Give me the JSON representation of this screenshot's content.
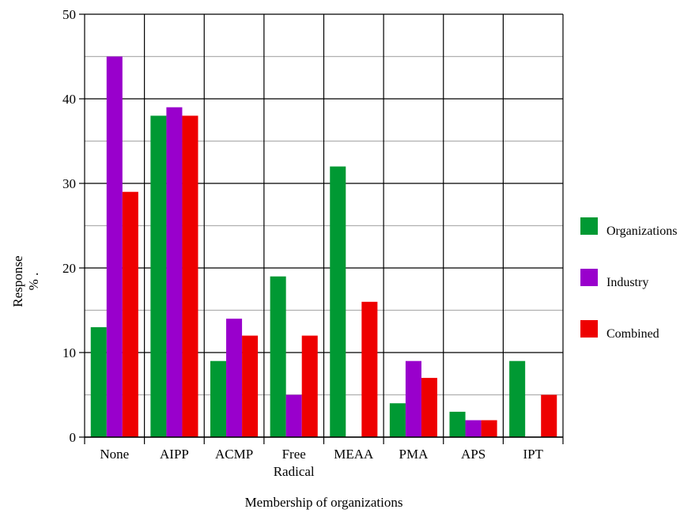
{
  "chart_data": {
    "type": "bar",
    "categories": [
      {
        "lines": [
          "None"
        ]
      },
      {
        "lines": [
          "AIPP"
        ]
      },
      {
        "lines": [
          "ACMP"
        ]
      },
      {
        "lines": [
          "Free",
          "Radical"
        ]
      },
      {
        "lines": [
          "MEAA"
        ]
      },
      {
        "lines": [
          "PMA"
        ]
      },
      {
        "lines": [
          "APS"
        ]
      },
      {
        "lines": [
          "IPT"
        ]
      }
    ],
    "series": [
      {
        "name": "Organizations",
        "color": "#009933",
        "values": [
          13,
          38,
          9,
          19,
          32,
          4,
          3,
          9
        ]
      },
      {
        "name": "Industry",
        "color": "#9900cc",
        "values": [
          45,
          39,
          14,
          5,
          0,
          9,
          2,
          0
        ]
      },
      {
        "name": "Combined",
        "color": "#ee0000",
        "values": [
          29,
          38,
          12,
          12,
          16,
          7,
          2,
          5
        ]
      }
    ],
    "ylim": [
      0,
      50
    ],
    "y_ticks": [
      "0",
      "10",
      "20",
      "30",
      "40",
      "50"
    ],
    "xlabel": "Membership of organizations",
    "ylabel_lines": [
      "Response",
      "% ."
    ],
    "gridlines": {
      "major": "black",
      "minor": "gray"
    },
    "legend_position": "right"
  }
}
